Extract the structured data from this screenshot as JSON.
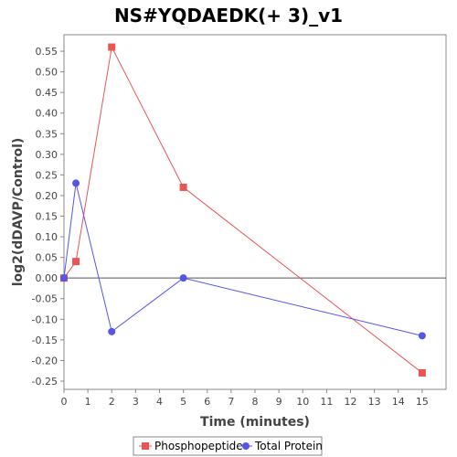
{
  "chart_data": {
    "type": "line",
    "title": "NS#YQDAEDK(+ 3)_v1",
    "xlabel": "Time (minutes)",
    "ylabel": "log2(dDAVP/Control)",
    "xlim": [
      0,
      16
    ],
    "ylim": [
      -0.27,
      0.59
    ],
    "xticks": [
      0,
      1,
      2,
      3,
      4,
      5,
      6,
      7,
      8,
      9,
      10,
      11,
      12,
      13,
      14,
      15
    ],
    "yticks": [
      -0.25,
      -0.2,
      -0.15,
      -0.1,
      -0.05,
      0.0,
      0.05,
      0.1,
      0.15,
      0.2,
      0.25,
      0.3,
      0.35,
      0.4,
      0.45,
      0.5,
      0.55
    ],
    "ytick_labels": [
      "-0.25",
      "-0.20",
      "-0.15",
      "-0.10",
      "-0.05",
      "0.00",
      "0.05",
      "0.10",
      "0.15",
      "0.20",
      "0.25",
      "0.30",
      "0.35",
      "0.40",
      "0.45",
      "0.50",
      "0.55"
    ],
    "grid": false,
    "legend_position": "bottom",
    "series": [
      {
        "name": "Phosphopeptide",
        "color": "#e85555",
        "marker": "square",
        "x": [
          0,
          0.5,
          2,
          5,
          15
        ],
        "y": [
          0.0,
          0.04,
          0.56,
          0.22,
          -0.23
        ]
      },
      {
        "name": "Total Protein",
        "color": "#5555e8",
        "marker": "circle",
        "x": [
          0,
          0.5,
          2,
          5,
          15
        ],
        "y": [
          0.0,
          0.23,
          -0.13,
          0.0,
          -0.14
        ]
      }
    ]
  }
}
